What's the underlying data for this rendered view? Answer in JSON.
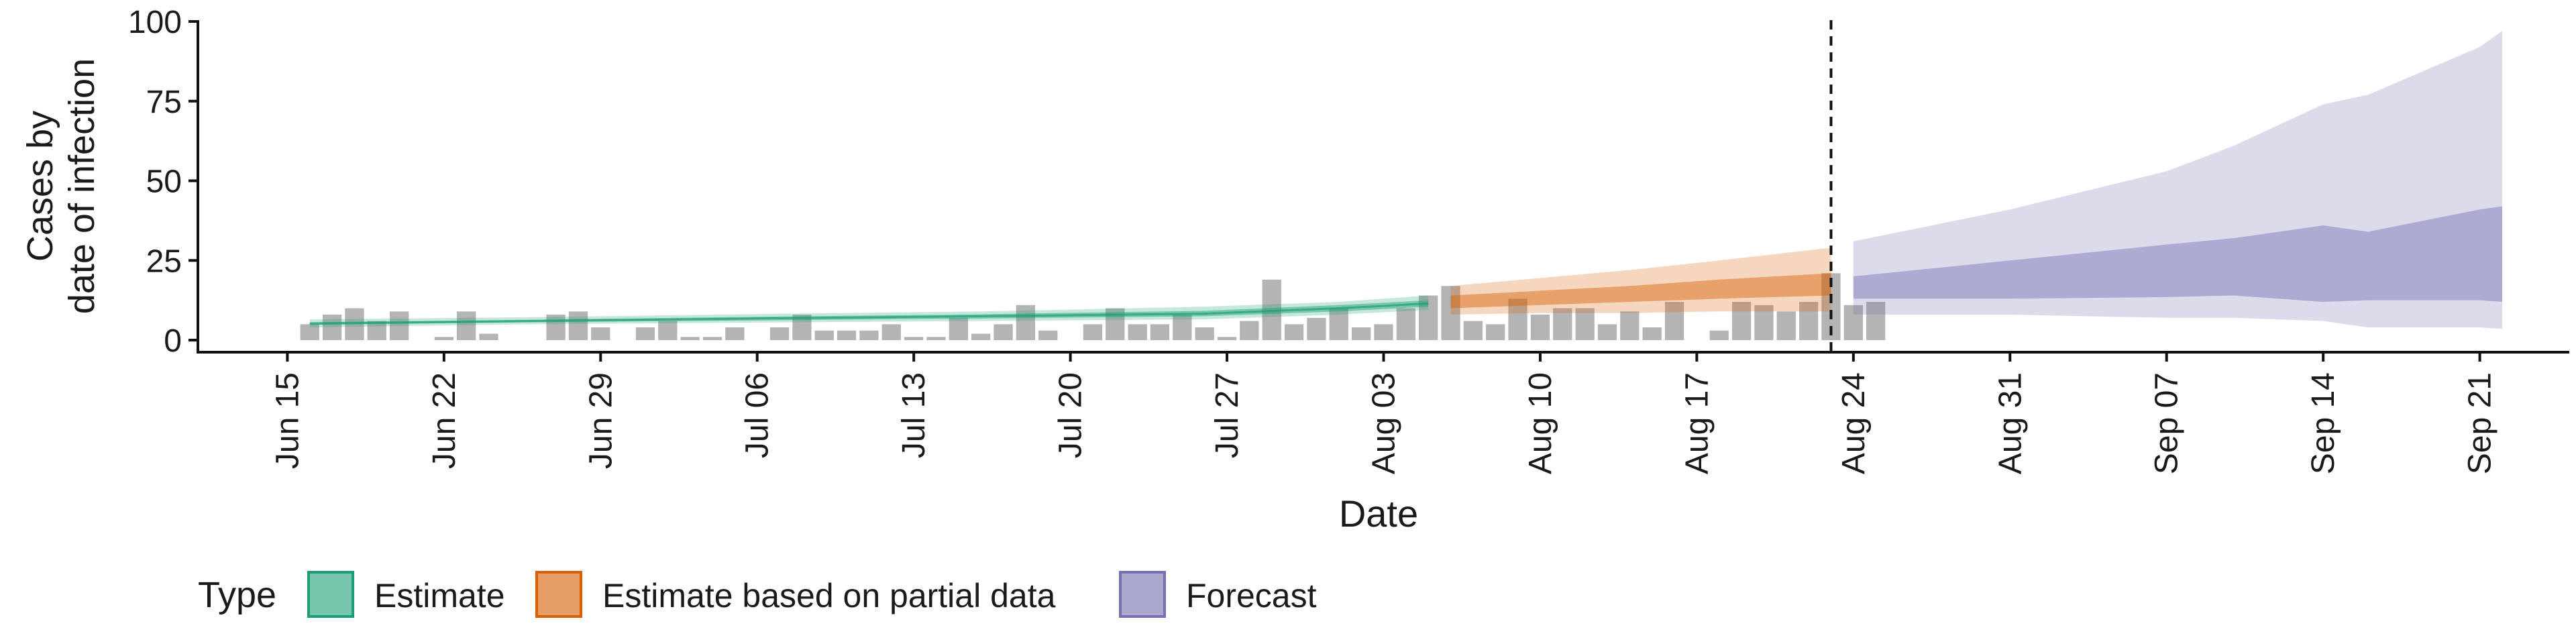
{
  "chart_data": {
    "type": "area",
    "xlabel": "Date",
    "ylabel": [
      "Cases by",
      "date of infection"
    ],
    "ylim": [
      0,
      100
    ],
    "yticks": [
      0,
      25,
      50,
      75,
      100
    ],
    "xlim": [
      "2020-06-11",
      "2020-09-25"
    ],
    "xticks": [
      "Jun 15",
      "Jun 22",
      "Jun 29",
      "Jul 06",
      "Jul 13",
      "Jul 20",
      "Jul 27",
      "Aug 03",
      "Aug 10",
      "Aug 17",
      "Aug 24",
      "Aug 31",
      "Sep 07",
      "Sep 14",
      "Sep 21"
    ],
    "xtick_dates": [
      "2020-06-15",
      "2020-06-22",
      "2020-06-29",
      "2020-07-06",
      "2020-07-13",
      "2020-07-20",
      "2020-07-27",
      "2020-08-03",
      "2020-08-10",
      "2020-08-17",
      "2020-08-24",
      "2020-08-31",
      "2020-09-07",
      "2020-09-14",
      "2020-09-21"
    ],
    "vline_date": "2020-08-23",
    "grid": false,
    "legend": {
      "title": "Type",
      "placement": "bottom-left",
      "entries": [
        "Estimate",
        "Estimate based on partial data",
        "Forecast"
      ]
    },
    "colors": {
      "Estimate": "#1b9e77",
      "Estimate based on partial data": "#d95f02",
      "Forecast": "#7570b3",
      "bars": "#b4b4b4"
    },
    "bars": {
      "start_date": "2020-06-16",
      "values": [
        5,
        8,
        10,
        6,
        9,
        0,
        1,
        9,
        2,
        0,
        0,
        8,
        9,
        4,
        0,
        4,
        6,
        1,
        1,
        4,
        0,
        4,
        8,
        3,
        3,
        3,
        5,
        1,
        1,
        7,
        2,
        5,
        11,
        3,
        0,
        5,
        10,
        5,
        5,
        8,
        4,
        1,
        6,
        19,
        5,
        7,
        10,
        4,
        5,
        10,
        14,
        17,
        6,
        5,
        13,
        8,
        10,
        10,
        5,
        9,
        4,
        12,
        0,
        3,
        12,
        11,
        9,
        12,
        21,
        11,
        12
      ]
    },
    "series": [
      {
        "name": "Estimate",
        "x": [
          "2020-06-16",
          "2020-06-26",
          "2020-07-06",
          "2020-07-16",
          "2020-07-26",
          "2020-08-01",
          "2020-08-05"
        ],
        "lower90": [
          4.0,
          5.0,
          5.5,
          6.0,
          6.5,
          8.0,
          9.5
        ],
        "lower50": [
          4.8,
          5.6,
          6.2,
          6.8,
          7.5,
          9.0,
          10.5
        ],
        "median": [
          5.2,
          6.0,
          6.8,
          7.5,
          8.3,
          10.0,
          11.5
        ],
        "upper50": [
          5.6,
          6.4,
          7.3,
          8.1,
          9.2,
          11.0,
          12.5
        ],
        "upper90": [
          6.5,
          7.2,
          8.2,
          9.0,
          10.5,
          12.0,
          14.0
        ]
      },
      {
        "name": "Estimate based on partial data",
        "x": [
          "2020-08-06",
          "2020-08-10",
          "2020-08-14",
          "2020-08-18",
          "2020-08-23"
        ],
        "lower90": [
          8.0,
          8.5,
          8.5,
          9.0,
          9.0
        ],
        "lower50": [
          10.0,
          11.0,
          12.0,
          13.0,
          14.0
        ],
        "upper50": [
          14.0,
          15.5,
          17.0,
          19.0,
          21.0
        ],
        "upper90": [
          17.0,
          19.5,
          22.0,
          25.0,
          29.0
        ]
      },
      {
        "name": "Forecast",
        "x": [
          "2020-08-24",
          "2020-08-31",
          "2020-09-07",
          "2020-09-10",
          "2020-09-14",
          "2020-09-16",
          "2020-09-21",
          "2020-09-22"
        ],
        "lower90": [
          8.0,
          8.0,
          7.0,
          7.0,
          6.0,
          4.0,
          4.0,
          3.5
        ],
        "lower50": [
          13.0,
          13.0,
          13.5,
          14.0,
          12.0,
          12.5,
          12.5,
          12.0
        ],
        "upper50": [
          20.0,
          25.0,
          30.0,
          32.0,
          36.0,
          34.0,
          41.0,
          42.0
        ],
        "upper90": [
          31.0,
          41.0,
          53.0,
          61.0,
          74.0,
          77.0,
          92.0,
          97.0
        ]
      }
    ]
  }
}
